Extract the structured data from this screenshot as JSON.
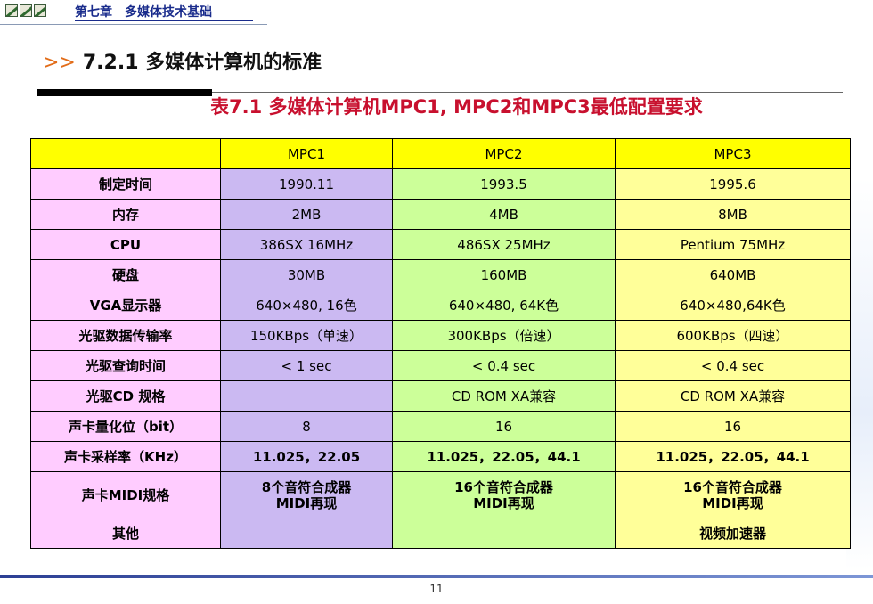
{
  "header": {
    "chapter": "第七章　多媒体技术基础",
    "logo_icons": [
      "slide-icon-1",
      "slide-icon-2",
      "slide-icon-3"
    ]
  },
  "section_title": {
    "arrows": ">>",
    "text": "7.2.1 多媒体计算机的标准"
  },
  "table_caption": "表7.1  多媒体计算机MPC1, MPC2和MPC3最低配置要求",
  "table": {
    "header": [
      "",
      "MPC1",
      "MPC2",
      "MPC3"
    ],
    "rows": [
      [
        "制定时间",
        "1990.11",
        "1993.5",
        "1995.6"
      ],
      [
        "内存",
        "2MB",
        "4MB",
        "8MB"
      ],
      [
        "CPU",
        "386SX 16MHz",
        "486SX 25MHz",
        "Pentium 75MHz"
      ],
      [
        "硬盘",
        "30MB",
        "160MB",
        "640MB"
      ],
      [
        "VGA显示器",
        "640×480, 16色",
        "640×480, 64K色",
        "640×480,64K色"
      ],
      [
        "光驱数据传输率",
        "150KBps（单速）",
        "300KBps（倍速）",
        "600KBps（四速）"
      ],
      [
        "光驱查询时间",
        "< 1 sec",
        "< 0.4 sec",
        "< 0.4 sec"
      ],
      [
        "光驱CD 规格",
        "",
        "CD ROM XA兼容",
        "CD ROM XA兼容"
      ],
      [
        "声卡量化位（bit）",
        "8",
        "16",
        "16"
      ],
      [
        "声卡采样率（KHz）",
        "11.025，22.05",
        "11.025，22.05，44.1",
        "11.025，22.05，44.1"
      ],
      [
        "声卡MIDI规格",
        "8个音符合成器\nMIDI再现",
        "16个音符合成器\nMIDI再现",
        "16个音符合成器\nMIDI再现"
      ],
      [
        "其他",
        "",
        "",
        "视频加速器"
      ]
    ]
  },
  "page_number": "11",
  "colors": {
    "header_row": "#ffff00",
    "label_col": "#ffccff",
    "mpc1_col": "#cbb9f2",
    "mpc2_col": "#ccff99",
    "mpc3_col": "#ffff99",
    "caption": "#c8102e",
    "arrows": "#e26d1a"
  }
}
